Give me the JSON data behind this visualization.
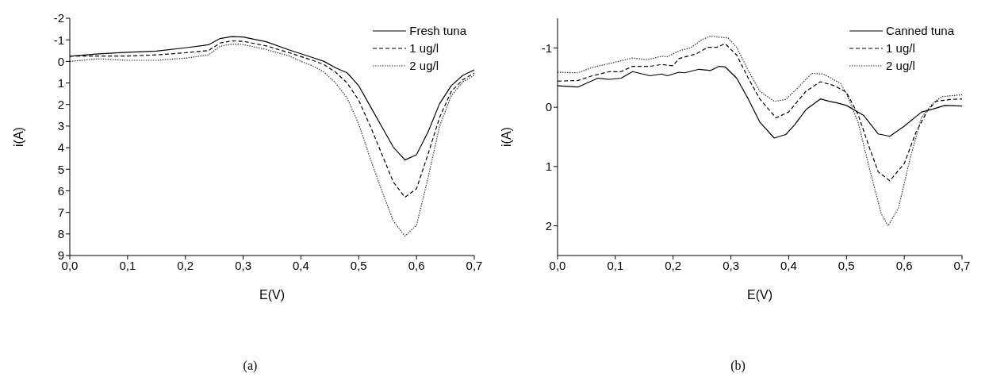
{
  "chart_data": [
    {
      "type": "line",
      "xlabel": "E(V)",
      "ylabel": "i(A)",
      "annotations": [
        "(a)"
      ],
      "xlim": [
        0,
        0.7
      ],
      "xticks": [
        {
          "value": 0,
          "label": "0,0"
        },
        {
          "value": 0.1,
          "label": "0,1"
        },
        {
          "value": 0.2,
          "label": "0,2"
        },
        {
          "value": 0.3,
          "label": "0,3"
        },
        {
          "value": 0.4,
          "label": "0,4"
        },
        {
          "value": 0.5,
          "label": "0,5"
        },
        {
          "value": 0.6,
          "label": "0,6"
        },
        {
          "value": 0.7,
          "label": "0,7"
        }
      ],
      "ylim": [
        9,
        -2
      ],
      "yticks": [
        -2,
        -1,
        0,
        1,
        2,
        3,
        4,
        5,
        6,
        7,
        8,
        9
      ],
      "grid": false,
      "legend": "top right",
      "marker": "none",
      "series": [
        {
          "name": "Fresh tuna",
          "color": "#000000",
          "line_style": "solid",
          "x": [
            0,
            0.05,
            0.1,
            0.15,
            0.2,
            0.24,
            0.26,
            0.28,
            0.3,
            0.34,
            0.38,
            0.42,
            0.44,
            0.46,
            0.48,
            0.5,
            0.52,
            0.54,
            0.56,
            0.58,
            0.6,
            0.62,
            0.64,
            0.66,
            0.68,
            0.7
          ],
          "values": [
            -0.24,
            -0.35,
            -0.42,
            -0.48,
            -0.63,
            -0.77,
            -1.06,
            -1.15,
            -1.13,
            -0.91,
            -0.53,
            -0.18,
            0,
            0.3,
            0.53,
            1.13,
            2.08,
            3.03,
            3.98,
            4.57,
            4.33,
            3.27,
            1.96,
            1.13,
            0.65,
            0.39
          ]
        },
        {
          "name": "1 ug/l",
          "color": "#000000",
          "line_style": "dashed",
          "x": [
            0,
            0.05,
            0.1,
            0.15,
            0.2,
            0.24,
            0.26,
            0.28,
            0.3,
            0.34,
            0.38,
            0.42,
            0.44,
            0.46,
            0.48,
            0.5,
            0.52,
            0.54,
            0.56,
            0.58,
            0.6,
            0.62,
            0.64,
            0.66,
            0.68,
            0.7
          ],
          "values": [
            -0.25,
            -0.25,
            -0.25,
            -0.3,
            -0.4,
            -0.5,
            -0.85,
            -0.95,
            -0.93,
            -0.72,
            -0.4,
            -0.05,
            0.15,
            0.5,
            1.0,
            1.8,
            3.0,
            4.3,
            5.6,
            6.3,
            5.9,
            4.3,
            2.6,
            1.4,
            0.85,
            0.55
          ]
        },
        {
          "name": "2 ug/l",
          "color": "#333333",
          "line_style": "dotted",
          "x": [
            0,
            0.05,
            0.1,
            0.15,
            0.2,
            0.24,
            0.26,
            0.28,
            0.3,
            0.34,
            0.38,
            0.4,
            0.42,
            0.44,
            0.46,
            0.48,
            0.5,
            0.52,
            0.54,
            0.56,
            0.58,
            0.6,
            0.62,
            0.64,
            0.66,
            0.68,
            0.7
          ],
          "values": [
            0,
            -0.12,
            -0.05,
            -0.05,
            -0.15,
            -0.3,
            -0.7,
            -0.8,
            -0.78,
            -0.55,
            -0.25,
            0,
            0.2,
            0.5,
            1.0,
            1.7,
            2.9,
            4.5,
            6.0,
            7.4,
            8.1,
            7.6,
            5.4,
            3.0,
            1.6,
            0.95,
            0.65
          ]
        }
      ]
    },
    {
      "type": "line",
      "xlabel": "E(V)",
      "ylabel": "i(A)",
      "annotations": [
        "(b)"
      ],
      "xlim": [
        0,
        0.7
      ],
      "xticks": [
        {
          "value": 0,
          "label": "0,0"
        },
        {
          "value": 0.1,
          "label": "0,1"
        },
        {
          "value": 0.2,
          "label": "0,2"
        },
        {
          "value": 0.3,
          "label": "0,3"
        },
        {
          "value": 0.4,
          "label": "0,4"
        },
        {
          "value": 0.5,
          "label": "0,5"
        },
        {
          "value": 0.6,
          "label": "0,6"
        },
        {
          "value": 0.7,
          "label": "0,7"
        }
      ],
      "ylim": [
        2.5,
        -1.5
      ],
      "yticks": [
        -1,
        0,
        1,
        2
      ],
      "grid": false,
      "legend": "top right",
      "marker": "none",
      "series": [
        {
          "name": "Canned tuna",
          "color": "#000000",
          "line_style": "solid",
          "x": [
            0,
            0.035,
            0.07,
            0.09,
            0.11,
            0.13,
            0.16,
            0.18,
            0.19,
            0.21,
            0.22,
            0.245,
            0.265,
            0.28,
            0.29,
            0.31,
            0.33,
            0.35,
            0.375,
            0.395,
            0.41,
            0.43,
            0.455,
            0.47,
            0.485,
            0.5,
            0.53,
            0.555,
            0.575,
            0.6,
            0.63,
            0.65,
            0.67,
            0.7
          ],
          "values": [
            -0.36,
            -0.34,
            -0.49,
            -0.47,
            -0.49,
            -0.6,
            -0.53,
            -0.56,
            -0.53,
            -0.59,
            -0.58,
            -0.64,
            -0.62,
            -0.69,
            -0.68,
            -0.49,
            -0.14,
            0.25,
            0.52,
            0.46,
            0.3,
            0.04,
            -0.14,
            -0.1,
            -0.07,
            -0.03,
            0.14,
            0.45,
            0.49,
            0.32,
            0.08,
            0.03,
            -0.03,
            -0.02
          ]
        },
        {
          "name": "1 ug/l",
          "color": "#000000",
          "line_style": "dashed",
          "x": [
            0,
            0.035,
            0.06,
            0.09,
            0.11,
            0.13,
            0.16,
            0.18,
            0.2,
            0.21,
            0.24,
            0.26,
            0.275,
            0.29,
            0.31,
            0.33,
            0.35,
            0.378,
            0.4,
            0.43,
            0.455,
            0.48,
            0.5,
            0.52,
            0.54,
            0.555,
            0.575,
            0.6,
            0.62,
            0.64,
            0.655,
            0.68,
            0.7
          ],
          "values": [
            -0.44,
            -0.45,
            -0.53,
            -0.6,
            -0.6,
            -0.69,
            -0.69,
            -0.72,
            -0.7,
            -0.82,
            -0.9,
            -1.01,
            -1.01,
            -1.07,
            -0.88,
            -0.49,
            -0.14,
            0.18,
            0.08,
            -0.27,
            -0.43,
            -0.36,
            -0.25,
            0.12,
            0.69,
            1.09,
            1.24,
            0.95,
            0.43,
            0.06,
            -0.1,
            -0.13,
            -0.14
          ]
        },
        {
          "name": "2 ug/l",
          "color": "#333333",
          "line_style": "dotted",
          "x": [
            0,
            0.035,
            0.06,
            0.1,
            0.13,
            0.155,
            0.18,
            0.19,
            0.21,
            0.23,
            0.25,
            0.265,
            0.28,
            0.295,
            0.31,
            0.33,
            0.35,
            0.375,
            0.395,
            0.41,
            0.44,
            0.46,
            0.49,
            0.5,
            0.52,
            0.54,
            0.56,
            0.572,
            0.59,
            0.61,
            0.63,
            0.65,
            0.665,
            0.7
          ],
          "values": [
            -0.59,
            -0.58,
            -0.67,
            -0.76,
            -0.83,
            -0.8,
            -0.86,
            -0.85,
            -0.95,
            -1.0,
            -1.14,
            -1.2,
            -1.18,
            -1.17,
            -1.01,
            -0.62,
            -0.27,
            -0.1,
            -0.13,
            -0.27,
            -0.57,
            -0.56,
            -0.4,
            -0.23,
            0.25,
            1.04,
            1.79,
            2.0,
            1.7,
            0.87,
            0.17,
            -0.07,
            -0.18,
            -0.21
          ]
        }
      ]
    }
  ]
}
